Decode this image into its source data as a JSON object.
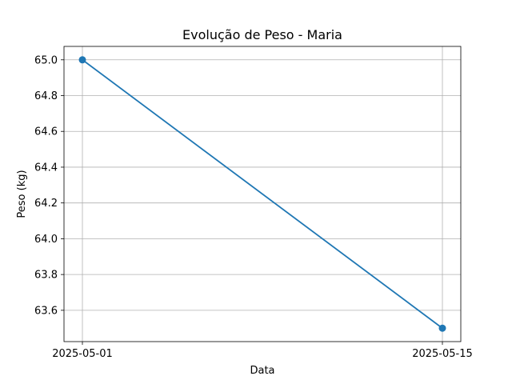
{
  "chart_data": {
    "type": "line",
    "title": "Evolução de Peso - Maria",
    "xlabel": "Data",
    "ylabel": "Peso (kg)",
    "x": [
      "2025-05-01",
      "2025-05-15"
    ],
    "series": [
      {
        "values": [
          65.0,
          63.5
        ],
        "color": "#1f77b4",
        "marker": "circle"
      }
    ],
    "xticks": [
      "2025-05-01",
      "2025-05-15"
    ],
    "yticks": [
      "63.6",
      "63.8",
      "64.0",
      "64.2",
      "64.4",
      "64.6",
      "64.8",
      "65.0"
    ],
    "ylim": [
      63.425,
      65.075
    ],
    "grid": true,
    "legend": false
  }
}
